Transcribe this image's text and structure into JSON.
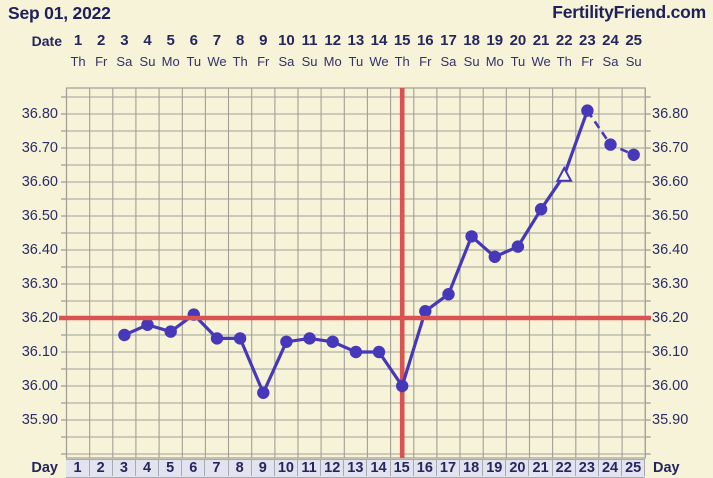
{
  "header": {
    "date_title": "Sep 01, 2022",
    "site": "FertilityFriend.com"
  },
  "axis_labels": {
    "date_top": "Date",
    "day_bottom_left": "Day",
    "day_bottom_right": "Day"
  },
  "chart_data": {
    "type": "line",
    "title": "Sep 01, 2022",
    "x_axis": {
      "days": [
        1,
        2,
        3,
        4,
        5,
        6,
        7,
        8,
        9,
        10,
        11,
        12,
        13,
        14,
        15,
        16,
        17,
        18,
        19,
        20,
        21,
        22,
        23,
        24,
        25
      ],
      "weekdays": [
        "Th",
        "Fr",
        "Sa",
        "Su",
        "Mo",
        "Tu",
        "We",
        "Th",
        "Fr",
        "Sa",
        "Su",
        "Mo",
        "Tu",
        "We",
        "Th",
        "Fr",
        "Sa",
        "Su",
        "Mo",
        "Tu",
        "We",
        "Th",
        "Fr",
        "Sa",
        "Su"
      ]
    },
    "y_axis": {
      "tick_labels": [
        "36.80",
        "36.70",
        "36.60",
        "36.50",
        "36.40",
        "36.30",
        "36.20",
        "36.10",
        "36.00",
        "35.90"
      ],
      "tick_values": [
        36.8,
        36.7,
        36.6,
        36.5,
        36.4,
        36.3,
        36.2,
        36.1,
        36.0,
        35.9
      ],
      "minor_step": 0.05,
      "ylim": [
        35.8,
        36.85
      ],
      "labels_on_both_sides": true,
      "grid": "on"
    },
    "series": [
      {
        "name": "temperature",
        "points": [
          {
            "day": 3,
            "temp": 36.15
          },
          {
            "day": 4,
            "temp": 36.18
          },
          {
            "day": 5,
            "temp": 36.16
          },
          {
            "day": 6,
            "temp": 36.21
          },
          {
            "day": 7,
            "temp": 36.14
          },
          {
            "day": 8,
            "temp": 36.14
          },
          {
            "day": 9,
            "temp": 35.98
          },
          {
            "day": 10,
            "temp": 36.13
          },
          {
            "day": 11,
            "temp": 36.14
          },
          {
            "day": 12,
            "temp": 36.13
          },
          {
            "day": 13,
            "temp": 36.1
          },
          {
            "day": 14,
            "temp": 36.1
          },
          {
            "day": 15,
            "temp": 36.0
          },
          {
            "day": 16,
            "temp": 36.22
          },
          {
            "day": 17,
            "temp": 36.27
          },
          {
            "day": 18,
            "temp": 36.44
          },
          {
            "day": 19,
            "temp": 36.38
          },
          {
            "day": 20,
            "temp": 36.41
          },
          {
            "day": 21,
            "temp": 36.52
          },
          {
            "day": 22,
            "temp": 36.62,
            "marker": "triangle-open"
          },
          {
            "day": 23,
            "temp": 36.81
          },
          {
            "day": 24,
            "temp": 36.71
          },
          {
            "day": 25,
            "temp": 36.68
          }
        ]
      }
    ],
    "dashed_segment_start_day": 23,
    "coverline_temp": 36.2,
    "vertical_line_day": 15
  },
  "colors": {
    "background": "#f6f3d8",
    "grid": "#a0a097",
    "line": "#4638b8",
    "red": "#da5252",
    "text_navy": "#26265f",
    "text_weekday": "#31316b",
    "band_bg": "#e3e2ef",
    "band_border": "#a9a9b2",
    "triangle_fill": "#fbf9ec"
  }
}
